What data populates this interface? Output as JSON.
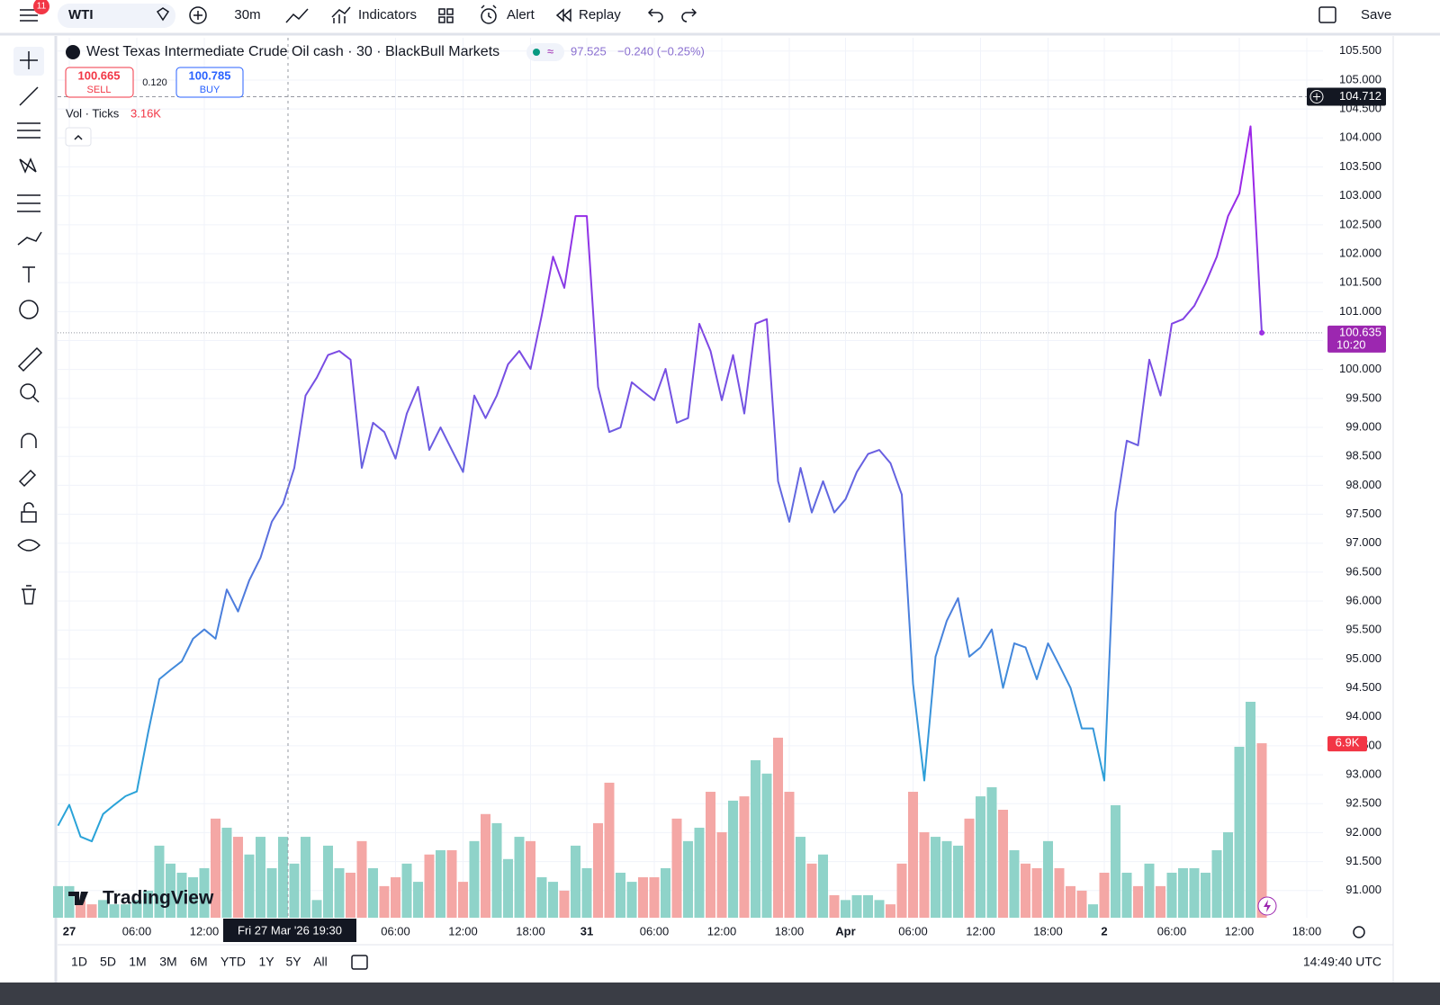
{
  "toolbar": {
    "notifications": "11",
    "symbol": "WTI",
    "interval": "30m",
    "indicators": "Indicators",
    "alert": "Alert",
    "replay": "Replay",
    "save": "Save"
  },
  "legend": {
    "title": "West Texas Intermediate Crude Oil cash · 30 · BlackBull Markets",
    "price": "97.525",
    "change": "−0.240 (−0.25%)",
    "sell_price": "100.665",
    "sell": "SELL",
    "spread": "0.120",
    "buy_price": "100.785",
    "buy": "BUY",
    "volume_label": "Vol · Ticks",
    "volume_value": "3.16K"
  },
  "logo": "TradingView",
  "ranges": [
    "1D",
    "5D",
    "1M",
    "3M",
    "6M",
    "YTD",
    "1Y",
    "5Y",
    "All"
  ],
  "clock": "14:49:40 UTC",
  "chart_data": {
    "type": "line",
    "categories": [
      null,
      "27",
      null,
      null,
      null,
      null,
      null,
      "06:00",
      null,
      null,
      null,
      null,
      null,
      "12:00",
      null,
      null,
      null,
      null,
      null,
      null,
      null,
      null,
      null,
      null,
      null,
      null,
      null,
      null,
      null,
      null,
      "06:00",
      null,
      null,
      null,
      null,
      null,
      "12:00",
      null,
      null,
      null,
      null,
      null,
      "18:00",
      null,
      null,
      null,
      null,
      "31",
      null,
      null,
      null,
      null,
      null,
      "06:00",
      null,
      null,
      null,
      null,
      null,
      "12:00",
      null,
      null,
      null,
      null,
      null,
      "18:00",
      null,
      null,
      null,
      null,
      "Apr",
      null,
      null,
      null,
      null,
      null,
      "06:00",
      null,
      null,
      null,
      null,
      null,
      "12:00",
      null,
      null,
      null,
      null,
      null,
      "18:00",
      null,
      null,
      null,
      null,
      "2",
      null,
      null,
      null,
      null,
      null,
      "06:00",
      null,
      null,
      null,
      null,
      null,
      "12:00",
      null,
      null,
      null,
      null,
      null,
      "18:00"
    ],
    "values": [
      92.12,
      92.48,
      91.93,
      91.85,
      92.32,
      92.48,
      92.63,
      92.71,
      93.72,
      94.65,
      94.81,
      94.96,
      95.35,
      95.51,
      95.35,
      96.2,
      95.82,
      96.36,
      96.75,
      97.37,
      97.68,
      98.3,
      99.55,
      99.86,
      100.25,
      100.32,
      100.17,
      98.3,
      99.08,
      98.92,
      98.46,
      99.24,
      99.7,
      98.61,
      99.0,
      98.61,
      98.23,
      99.55,
      99.16,
      99.55,
      100.09,
      100.32,
      100.01,
      100.94,
      101.95,
      101.41,
      102.65,
      102.65,
      99.7,
      98.92,
      99.0,
      99.78,
      99.62,
      99.47,
      100.01,
      99.08,
      99.16,
      100.79,
      100.32,
      99.47,
      100.25,
      99.24,
      100.79,
      100.87,
      98.07,
      97.37,
      98.3,
      97.53,
      98.07,
      97.53,
      97.76,
      98.23,
      98.54,
      98.61,
      98.38,
      97.84,
      94.57,
      92.9,
      95.04,
      95.66,
      96.05,
      95.04,
      95.2,
      95.51,
      94.5,
      95.27,
      95.2,
      94.65,
      95.27,
      94.89,
      94.5,
      93.8,
      93.8,
      92.9,
      97.53,
      98.77,
      98.69,
      100.17,
      99.55,
      100.79,
      100.87,
      101.1,
      101.49,
      101.95,
      102.65,
      103.04,
      104.2,
      100.635,
      null,
      null,
      null,
      null
    ],
    "gradient": [
      "#9c27e8",
      "#2aa3d8"
    ],
    "ylim": [
      90.53,
      105.73
    ],
    "yticks": [
      {
        "value": 91,
        "label": "91.000"
      },
      {
        "value": 91.5,
        "label": "91.500"
      },
      {
        "value": 92,
        "label": "92.000"
      },
      {
        "value": 92.5,
        "label": "92.500"
      },
      {
        "value": 93,
        "label": "93.000"
      },
      {
        "value": 93.5,
        "label": "93.500"
      },
      {
        "value": 94,
        "label": "94.000"
      },
      {
        "value": 94.5,
        "label": "94.500"
      },
      {
        "value": 95,
        "label": "95.000"
      },
      {
        "value": 95.5,
        "label": "95.500"
      },
      {
        "value": 96,
        "label": "96.000"
      },
      {
        "value": 96.5,
        "label": "96.500"
      },
      {
        "value": 97,
        "label": "97.000"
      },
      {
        "value": 97.5,
        "label": "97.500"
      },
      {
        "value": 98,
        "label": "98.000"
      },
      {
        "value": 98.5,
        "label": "98.500"
      },
      {
        "value": 99,
        "label": "99.000"
      },
      {
        "value": 99.5,
        "label": "99.500"
      },
      {
        "value": 100,
        "label": "100.000"
      },
      {
        "value": 100.5,
        "label": "100.500"
      },
      {
        "value": 101,
        "label": "101.000"
      },
      {
        "value": 101.5,
        "label": "101.500"
      },
      {
        "value": 102,
        "label": "102.000"
      },
      {
        "value": 102.5,
        "label": "102.500"
      },
      {
        "value": 103,
        "label": "103.000"
      },
      {
        "value": 103.5,
        "label": "103.500"
      },
      {
        "value": 104,
        "label": "104.000"
      },
      {
        "value": 104.5,
        "label": "104.500"
      },
      {
        "value": 105,
        "label": "105.000"
      },
      {
        "value": 105.5,
        "label": "105.500"
      }
    ],
    "grid": true,
    "price_lines": [
      {
        "value": 104.712,
        "color": "#131722"
      },
      {
        "value": 100.635,
        "time": "10:20",
        "color": "#9c27b0"
      }
    ],
    "volume": {
      "values": [
        1250,
        1250,
        700,
        530,
        700,
        530,
        530,
        700,
        1070,
        2850,
        2140,
        1780,
        1600,
        1960,
        3920,
        3560,
        3200,
        2500,
        3200,
        1960,
        3200,
        2140,
        3200,
        700,
        2850,
        1960,
        1780,
        3030,
        1960,
        1250,
        1600,
        2140,
        1420,
        2500,
        2670,
        2670,
        1420,
        3030,
        4100,
        3740,
        2320,
        3200,
        3030,
        1600,
        1420,
        1070,
        2850,
        1960,
        3740,
        5340,
        1780,
        1420,
        1600,
        1600,
        1960,
        3920,
        3030,
        3560,
        4980,
        3380,
        4630,
        4800,
        6230,
        5700,
        7120,
        4980,
        3200,
        2140,
        2500,
        890,
        700,
        890,
        890,
        700,
        530,
        2140,
        4980,
        3380,
        3200,
        3030,
        2850,
        3920,
        4800,
        5160,
        4270,
        2670,
        2140,
        1960,
        3030,
        1960,
        1250,
        1070,
        530,
        1780,
        4450,
        1780,
        1250,
        2140,
        1250,
        1780,
        1960,
        1960,
        1780,
        2670,
        3380,
        6760,
        8540,
        6900,
        null,
        null,
        null,
        null
      ],
      "last_label": "6.9K",
      "lim": [
        0,
        34800
      ],
      "up_color": "#8fd3c9",
      "down_color": "#f4a7a5"
    },
    "crosshair": {
      "label": "Fri 27 Mar '26 19:30"
    }
  }
}
